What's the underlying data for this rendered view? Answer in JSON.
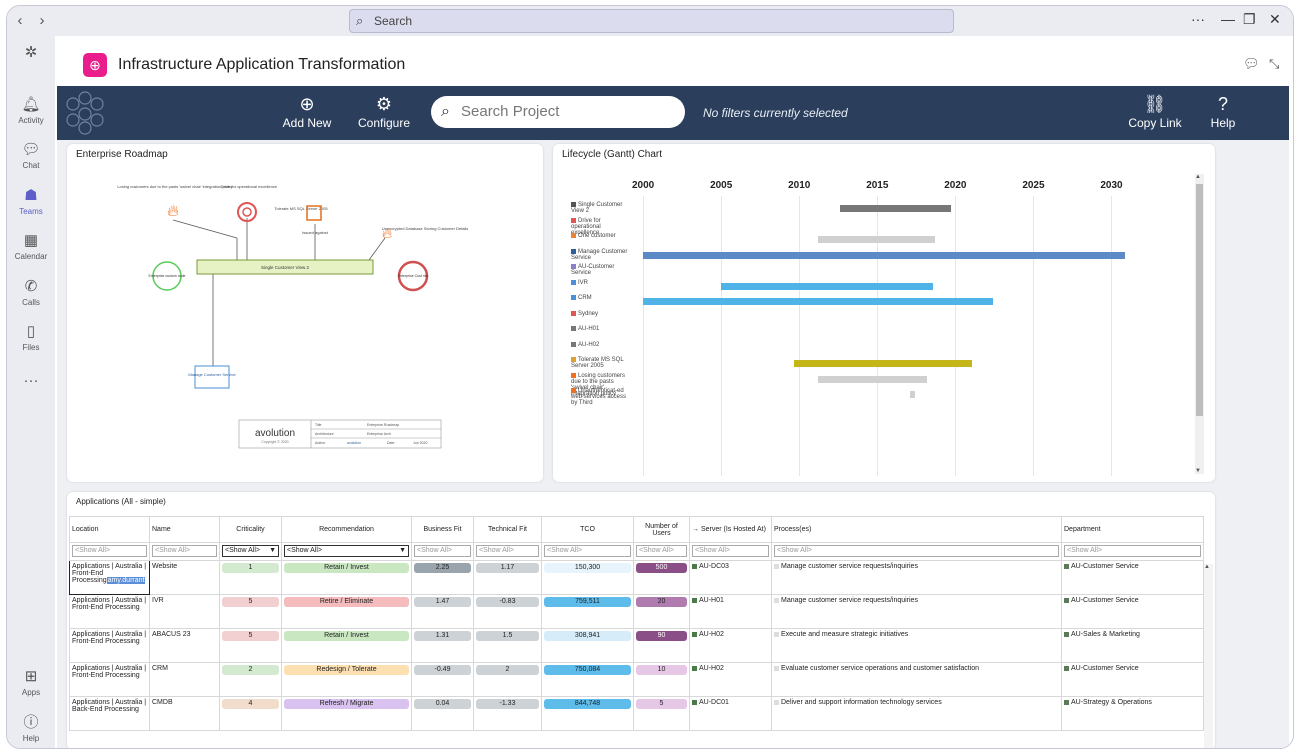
{
  "titlebar": {
    "search_placeholder": "Search"
  },
  "rail": [
    {
      "label": "Activity",
      "icon": "bell-icon",
      "glyph": "🔔"
    },
    {
      "label": "Chat",
      "icon": "chat-icon",
      "glyph": "💬"
    },
    {
      "label": "Teams",
      "icon": "teams-icon",
      "glyph": "👥"
    },
    {
      "label": "Calendar",
      "icon": "calendar-icon",
      "glyph": "📅"
    },
    {
      "label": "Calls",
      "icon": "phone-icon",
      "glyph": "📞"
    },
    {
      "label": "Files",
      "icon": "file-icon",
      "glyph": "📄"
    },
    {
      "label": "Apps",
      "icon": "apps-icon",
      "glyph": "⊞"
    },
    {
      "label": "Help",
      "icon": "help-icon",
      "glyph": "?"
    }
  ],
  "app": {
    "title": "Infrastructure Application Transformation"
  },
  "toolbar": {
    "add_new": "Add New",
    "configure": "Configure",
    "search_placeholder": "Search Project",
    "filter_status": "No filters currently selected",
    "copy_link": "Copy Link",
    "help": "Help"
  },
  "roadmap": {
    "title": "Enterprise Roadmap",
    "labels": {
      "risk1": "Losing customers due to the pasts 'swivel chair' integration policy",
      "goal": "Drive for operational excellence",
      "tolerate": "Tolerate MS SQL Server 2005",
      "issue": "Unencrypted Database Storing Customer Details",
      "issued": "Issued against",
      "center": "Single Customer View 2",
      "left_node": "Enterprise custom node",
      "right_node": "Enterprise Cust risk",
      "manage": "Manage Customer Service"
    },
    "stamp": {
      "brand": "avolution",
      "copyright": "Copyright © 2020",
      "rows": [
        [
          "Title",
          "Enterprise Roadmap"
        ],
        [
          "Architecture",
          "Enterprise Arch"
        ],
        [
          "Author",
          "avolution",
          "Date",
          "Jun 2020"
        ]
      ]
    }
  },
  "gantt": {
    "title": "Lifecycle (Gantt) Chart",
    "years": [
      "2000",
      "2005",
      "2010",
      "2015",
      "2020",
      "2025",
      "2030"
    ],
    "rows": [
      {
        "label": "Single Customer View 2",
        "icon_color": "#555"
      },
      {
        "label": "Drive for operational excellence",
        "icon_color": "#e05555"
      },
      {
        "label": "One customer",
        "icon_color": "#e8843a"
      },
      {
        "label": "Manage Customer Service",
        "icon_color": "#2f5f9a"
      },
      {
        "label": "AU-Customer Service",
        "icon_color": "#8a7fc8"
      },
      {
        "label": "IVR",
        "icon_color": "#4a90d9"
      },
      {
        "label": "CRM",
        "icon_color": "#4a90d9"
      },
      {
        "label": "Sydney",
        "icon_color": "#e05555"
      },
      {
        "label": "AU-H01",
        "icon_color": "#777"
      },
      {
        "label": "AU-H02",
        "icon_color": "#777"
      },
      {
        "label": "Tolerate MS SQL Server 2005",
        "icon_color": "#e0a030"
      },
      {
        "label": "Losing customers due to the pasts 'swivel chair' integration policy",
        "icon_color": "#f07020"
      },
      {
        "label": "Unauthenticat-ed web services access by Third",
        "icon_color": "#f07020"
      }
    ]
  },
  "chart_data": {
    "type": "bar",
    "title": "Lifecycle (Gantt) Chart",
    "xlim": [
      2000,
      2031
    ],
    "categories": [
      "Single Customer View 2",
      "Drive for operational excellence",
      "One customer",
      "Manage Customer Service",
      "AU-Customer Service",
      "IVR",
      "CRM",
      "Sydney",
      "AU-H01",
      "AU-H02",
      "Tolerate MS SQL Server 2005",
      "Losing customers due to the pasts 'swivel chair' integration policy",
      "Unauthenticat-ed web services access by Third"
    ],
    "bars": [
      {
        "row": 0,
        "start": 2012.6,
        "end": 2019.7,
        "color": "#777"
      },
      {
        "row": 2,
        "start": 2011.2,
        "end": 2018.7,
        "color": "#d0d0d0"
      },
      {
        "row": 3,
        "start": 2000,
        "end": 2030.9,
        "color": "#5b8ac6"
      },
      {
        "row": 5,
        "start": 2005,
        "end": 2018.6,
        "color": "#4fb3e8"
      },
      {
        "row": 6,
        "start": 2000,
        "end": 2022.4,
        "color": "#4fb3e8"
      },
      {
        "row": 10,
        "start": 2009.7,
        "end": 2021.1,
        "color": "#c4b518"
      },
      {
        "row": 11,
        "start": 2011.2,
        "end": 2018.2,
        "color": "#d0d0d0"
      },
      {
        "row": 12,
        "start": 2017.1,
        "end": 2017.4,
        "color": "#d0d0d0"
      }
    ]
  },
  "table": {
    "title": "Applications (All - simple)",
    "columns": [
      "Location",
      "Name",
      "Criticality",
      "Recommendation",
      "Business Fit",
      "Technical Fit",
      "TCO",
      "Number of Users",
      "→ Server (Is Hosted At)",
      "Process(es)",
      "Department"
    ],
    "filter": "<Show All>",
    "rows": [
      {
        "location": "Applications | Australia | Front-End Processing",
        "name": "Website",
        "criticality": "1",
        "recommendation": "Retain / Invest",
        "business_fit": "2.25",
        "technical_fit": "1.17",
        "tco": "150,300",
        "users": "500",
        "server": "AU-DC03",
        "process": "Manage customer service requests/inquiries",
        "department": "AU-Customer Service",
        "tooltip": "amy.durrant"
      },
      {
        "location": "Applications | Australia | Front-End Processing",
        "name": "IVR",
        "criticality": "5",
        "recommendation": "Retire / Eliminate",
        "business_fit": "1.47",
        "technical_fit": "-0.83",
        "tco": "759,511",
        "users": "20",
        "server": "AU-H01",
        "process": "Manage customer service requests/inquiries",
        "department": "AU-Customer Service"
      },
      {
        "location": "Applications | Australia | Front-End Processing",
        "name": "ABACUS 23",
        "criticality": "5",
        "recommendation": "Retain / Invest",
        "business_fit": "1.31",
        "technical_fit": "1.5",
        "tco": "308,941",
        "users": "90",
        "server": "AU-H02",
        "process": "Execute and measure strategic initiatives",
        "department": "AU-Sales & Marketing"
      },
      {
        "location": "Applications | Australia | Front-End Processing",
        "name": "CRM",
        "criticality": "2",
        "recommendation": "Redesign / Tolerate",
        "business_fit": "-0.49",
        "technical_fit": "2",
        "tco": "750,084",
        "users": "10",
        "server": "AU-H02",
        "process": "Evaluate customer service operations and customer satisfaction",
        "department": "AU-Customer Service"
      },
      {
        "location": "Applications | Australia | Back-End Processing",
        "name": "CMDB",
        "criticality": "4",
        "recommendation": "Refresh / Migrate",
        "business_fit": "0.04",
        "technical_fit": "-1.33",
        "tco": "844,748",
        "users": "5",
        "server": "AU-DC01",
        "process": "Deliver and support information technology services",
        "department": "AU-Strategy & Operations"
      }
    ],
    "colors": {
      "crit": {
        "1": "#d4ead0",
        "2": "#d4ead0",
        "4": "#f2dccc",
        "5": "#f2cfd0"
      },
      "rec": {
        "Retain / Invest": "#c9e8c2",
        "Retire / Eliminate": "#f4bcbc",
        "Redesign / Tolerate": "#fde0b2",
        "Refresh / Migrate": "#d9c2f0"
      }
    }
  }
}
